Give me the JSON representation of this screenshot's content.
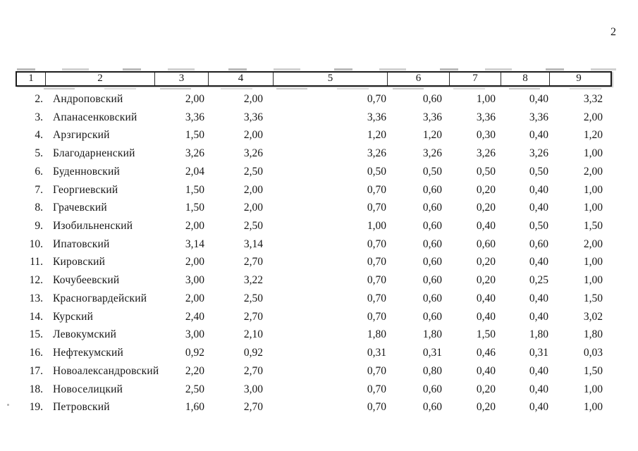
{
  "page": {
    "number": "2"
  },
  "table": {
    "header": [
      "1",
      "2",
      "3",
      "4",
      "5",
      "6",
      "7",
      "8",
      "9"
    ],
    "rows": [
      {
        "num": "2.",
        "name": "Андроповский",
        "values": [
          "2,00",
          "2,00",
          "0,70",
          "0,60",
          "1,00",
          "0,40",
          "3,32"
        ]
      },
      {
        "num": "3.",
        "name": "Апанасенковский",
        "values": [
          "3,36",
          "3,36",
          "3,36",
          "3,36",
          "3,36",
          "3,36",
          "2,00"
        ]
      },
      {
        "num": "4.",
        "name": "Арзгирский",
        "values": [
          "1,50",
          "2,00",
          "1,20",
          "1,20",
          "0,30",
          "0,40",
          "1,20"
        ]
      },
      {
        "num": "5.",
        "name": "Благодарненский",
        "values": [
          "3,26",
          "3,26",
          "3,26",
          "3,26",
          "3,26",
          "3,26",
          "1,00"
        ]
      },
      {
        "num": "6.",
        "name": "Буденновский",
        "values": [
          "2,04",
          "2,50",
          "0,50",
          "0,50",
          "0,50",
          "0,50",
          "2,00"
        ]
      },
      {
        "num": "7.",
        "name": "Георгиевский",
        "values": [
          "1,50",
          "2,00",
          "0,70",
          "0,60",
          "0,20",
          "0,40",
          "1,00"
        ]
      },
      {
        "num": "8.",
        "name": "Грачевский",
        "values": [
          "1,50",
          "2,00",
          "0,70",
          "0,60",
          "0,20",
          "0,40",
          "1,00"
        ]
      },
      {
        "num": "9.",
        "name": "Изобильненский",
        "values": [
          "2,00",
          "2,50",
          "1,00",
          "0,60",
          "0,40",
          "0,50",
          "1,50"
        ]
      },
      {
        "num": "10.",
        "name": "Ипатовский",
        "values": [
          "3,14",
          "3,14",
          "0,70",
          "0,60",
          "0,60",
          "0,60",
          "2,00"
        ]
      },
      {
        "num": "11.",
        "name": "Кировский",
        "values": [
          "2,00",
          "2,70",
          "0,70",
          "0,60",
          "0,20",
          "0,40",
          "1,00"
        ]
      },
      {
        "num": "12.",
        "name": "Кочубеевский",
        "values": [
          "3,00",
          "3,22",
          "0,70",
          "0,60",
          "0,20",
          "0,25",
          "1,00"
        ]
      },
      {
        "num": "13.",
        "name": "Красногвардейский",
        "values": [
          "2,00",
          "2,50",
          "0,70",
          "0,60",
          "0,40",
          "0,40",
          "1,50"
        ]
      },
      {
        "num": "14.",
        "name": "Курский",
        "values": [
          "2,40",
          "2,70",
          "0,70",
          "0,60",
          "0,40",
          "0,40",
          "3,02"
        ]
      },
      {
        "num": "15.",
        "name": "Левокумский",
        "values": [
          "3,00",
          "2,10",
          "1,80",
          "1,80",
          "1,50",
          "1,80",
          "1,80"
        ]
      },
      {
        "num": "16.",
        "name": "Нефтекумский",
        "values": [
          "0,92",
          "0,92",
          "0,31",
          "0,31",
          "0,46",
          "0,31",
          "0,03"
        ]
      },
      {
        "num": "17.",
        "name": "Новоалександровский",
        "values": [
          "2,20",
          "2,70",
          "0,70",
          "0,80",
          "0,40",
          "0,40",
          "1,50"
        ]
      },
      {
        "num": "18.",
        "name": "Новоселицкий",
        "values": [
          "2,50",
          "3,00",
          "0,70",
          "0,60",
          "0,20",
          "0,40",
          "1,00"
        ]
      },
      {
        "num": "19.",
        "name": "Петровский",
        "values": [
          "1,60",
          "2,70",
          "0,70",
          "0,60",
          "0,20",
          "0,40",
          "1,00"
        ]
      }
    ]
  }
}
